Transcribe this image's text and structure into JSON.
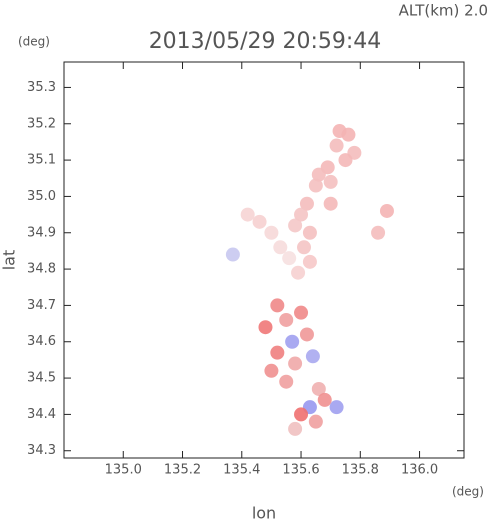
{
  "chart_data": {
    "type": "scatter",
    "title": "2013/05/29 20:59:44",
    "altitude_label": "ALT(km) 2.0",
    "y_unit": "(deg)",
    "x_unit": "(deg)",
    "xlabel": "lon",
    "ylabel": "lat",
    "xlim": [
      134.8,
      136.15
    ],
    "ylim": [
      34.28,
      35.37
    ],
    "xticks": [
      {
        "value": 135.0,
        "label": "135.0"
      },
      {
        "value": 135.2,
        "label": "135.2"
      },
      {
        "value": 135.4,
        "label": "135.4"
      },
      {
        "value": 135.6,
        "label": "135.6"
      },
      {
        "value": 135.8,
        "label": "135.8"
      },
      {
        "value": 136.0,
        "label": "136.0"
      }
    ],
    "yticks": [
      34.3,
      34.4,
      34.5,
      34.6,
      34.7,
      34.8,
      34.9,
      {
        "value": 35.0,
        "label": "35.0"
      },
      35.1,
      35.2,
      35.3
    ],
    "x": [
      135.73,
      135.76,
      135.72,
      135.78,
      135.75,
      135.69,
      135.66,
      135.7,
      135.65,
      135.62,
      135.6,
      135.58,
      135.63,
      135.61,
      135.42,
      135.46,
      135.5,
      135.53,
      135.56,
      135.37,
      135.7,
      135.89,
      135.86,
      135.63,
      135.59,
      135.52,
      135.55,
      135.6,
      135.48,
      135.57,
      135.62,
      135.52,
      135.58,
      135.64,
      135.5,
      135.55,
      135.66,
      135.68,
      135.63,
      135.72,
      135.6,
      135.65,
      135.58
    ],
    "y": [
      35.18,
      35.17,
      35.14,
      35.12,
      35.1,
      35.08,
      35.06,
      35.04,
      35.03,
      34.98,
      34.95,
      34.92,
      34.9,
      34.86,
      34.95,
      34.93,
      34.9,
      34.86,
      34.83,
      34.84,
      34.98,
      34.96,
      34.9,
      34.82,
      34.79,
      34.7,
      34.66,
      34.68,
      34.64,
      34.6,
      34.62,
      34.57,
      34.54,
      34.56,
      34.52,
      34.49,
      34.47,
      34.44,
      34.42,
      34.42,
      34.4,
      34.38,
      34.36
    ],
    "colors": [
      "#f4b4b4",
      "#f4b4b4",
      "#f4bcbc",
      "#f4bcbc",
      "#f4b8b8",
      "#f4b8b8",
      "#f4bcbc",
      "#f4c0c0",
      "#f4c0c0",
      "#f4bcbc",
      "#f4c4c4",
      "#f4c8c8",
      "#f4c0c0",
      "#f4c4c4",
      "#f6d4d4",
      "#f6d0d0",
      "#f6d8d8",
      "#f6dcdc",
      "#f6e0e0",
      "#c8c8f0",
      "#f4b8b8",
      "#f4b4b4",
      "#f4bcbc",
      "#f6c8c8",
      "#f6d0d0",
      "#f08888",
      "#f0a0a0",
      "#f08888",
      "#f07878",
      "#a0a0f0",
      "#f09898",
      "#f08080",
      "#f0a8a8",
      "#a8a8f0",
      "#f09090",
      "#f0a0a0",
      "#f0b0b0",
      "#f09090",
      "#9898f0",
      "#a0a0f0",
      "#f07070",
      "#f0a0a0",
      "#f0c0c0"
    ]
  }
}
